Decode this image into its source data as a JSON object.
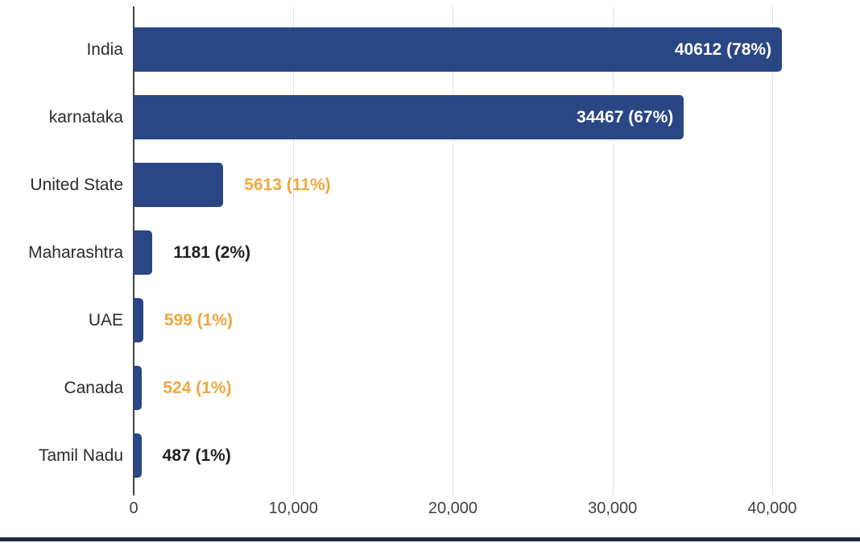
{
  "chart_data": {
    "type": "bar",
    "orientation": "horizontal",
    "title": "",
    "xlabel": "",
    "ylabel": "",
    "xlim": [
      0,
      44340
    ],
    "grid": true,
    "legend": "none",
    "categories": [
      "India",
      "karnataka",
      "United State",
      "Maharashtra",
      "UAE",
      "Canada",
      "Tamil Nadu"
    ],
    "values": [
      40612,
      34467,
      5613,
      1181,
      599,
      524,
      487
    ],
    "bars": [
      {
        "category": "India",
        "value": 40612,
        "label": "40612 (78%)",
        "label_position": "inside",
        "label_color": "#ffffff"
      },
      {
        "category": "karnataka",
        "value": 34467,
        "label": "34467 (67%)",
        "label_position": "inside",
        "label_color": "#ffffff"
      },
      {
        "category": "United State",
        "value": 5613,
        "label": "5613 (11%)",
        "label_position": "outside",
        "label_color": "#efa73e"
      },
      {
        "category": "Maharashtra",
        "value": 1181,
        "label": "1181 (2%)",
        "label_position": "outside",
        "label_color": "#212121"
      },
      {
        "category": "UAE",
        "value": 599,
        "label": "599 (1%)",
        "label_position": "outside",
        "label_color": "#efa73e"
      },
      {
        "category": "Canada",
        "value": 524,
        "label": "524 (1%)",
        "label_position": "outside",
        "label_color": "#efa73e"
      },
      {
        "category": "Tamil Nadu",
        "value": 487,
        "label": "487 (1%)",
        "label_position": "outside",
        "label_color": "#212121"
      }
    ],
    "xticks": [
      {
        "value": 0,
        "label": "0"
      },
      {
        "value": 10000,
        "label": "10,000"
      },
      {
        "value": 20000,
        "label": "20,000"
      },
      {
        "value": 30000,
        "label": "30,000"
      },
      {
        "value": 40000,
        "label": "40,000"
      }
    ],
    "colors": {
      "bar": "#2a4685",
      "gridline": "#e3e3e3",
      "axis": "#424242",
      "accent_orange": "#efa73e",
      "label_dark": "#212121",
      "tick_label": "#3d4043",
      "bottom_rule": "#1e2a3c"
    }
  }
}
